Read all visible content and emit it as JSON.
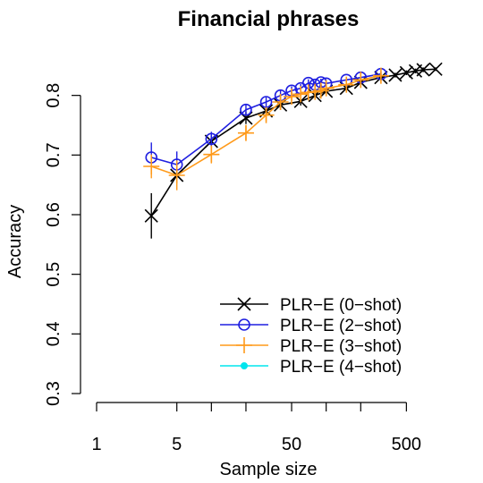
{
  "chart_data": {
    "type": "line",
    "title": "Financial phrases",
    "xlabel": "Sample size",
    "ylabel": "Accuracy",
    "x_scale": "log",
    "xlim": [
      1,
      1000
    ],
    "ylim": [
      0.3,
      0.87
    ],
    "x_ticks": [
      1,
      5,
      10,
      20,
      50,
      100,
      200,
      500
    ],
    "x_tick_labels": [
      "1",
      "5",
      "",
      "",
      "50",
      "",
      "",
      "500"
    ],
    "y_ticks": [
      0.3,
      0.4,
      0.5,
      0.6,
      0.7,
      0.8
    ],
    "y_tick_labels": [
      "0.3",
      "0.4",
      "0.5",
      "0.6",
      "0.7",
      "0.8"
    ],
    "grid": false,
    "legend_position": "bottom-right",
    "series": [
      {
        "name": "PLR−E (0−shot)",
        "color": "#000000",
        "marker": "x",
        "x": [
          3,
          5,
          10,
          20,
          30,
          40,
          60,
          80,
          100,
          150,
          200,
          300,
          400,
          500,
          600,
          700,
          900
        ],
        "y": [
          0.598,
          0.666,
          0.723,
          0.762,
          0.774,
          0.784,
          0.79,
          0.8,
          0.807,
          0.812,
          0.822,
          0.83,
          0.834,
          0.838,
          0.841,
          0.843,
          0.844
        ],
        "err": [
          0.038,
          0.01,
          0.01,
          0.01,
          0.008,
          0.008,
          0.007,
          0.006,
          0.006,
          0.006,
          0.005,
          0.005,
          0.004,
          0.004,
          0.004,
          0.004,
          0.003
        ]
      },
      {
        "name": "PLR−E (2−shot)",
        "color": "#1f1fe0",
        "marker": "circle",
        "x": [
          3,
          5,
          10,
          20,
          30,
          40,
          50,
          60,
          70,
          80,
          90,
          100,
          150,
          200,
          300
        ],
        "y": [
          0.696,
          0.684,
          0.727,
          0.776,
          0.789,
          0.8,
          0.808,
          0.812,
          0.821,
          0.818,
          0.822,
          0.82,
          0.826,
          0.83,
          0.836
        ],
        "err": [
          0.025,
          0.022,
          0.012,
          0.01,
          0.008,
          0.008,
          0.007,
          0.007,
          0.006,
          0.006,
          0.006,
          0.006,
          0.005,
          0.005,
          0.004
        ]
      },
      {
        "name": "PLR−E (3−shot)",
        "color": "#ff9a1a",
        "marker": "plus",
        "x": [
          3,
          5,
          10,
          20,
          30,
          40,
          50,
          60,
          70,
          80,
          90,
          100,
          150,
          200,
          300
        ],
        "y": [
          0.681,
          0.666,
          0.701,
          0.737,
          0.767,
          0.789,
          0.798,
          0.802,
          0.805,
          0.806,
          0.808,
          0.812,
          0.818,
          0.826,
          0.833
        ],
        "err": [
          0.02,
          0.025,
          0.015,
          0.012,
          0.01,
          0.008,
          0.007,
          0.007,
          0.006,
          0.006,
          0.006,
          0.005,
          0.005,
          0.005,
          0.004
        ]
      },
      {
        "name": "PLR−E (4−shot)",
        "color": "#00e5ee",
        "marker": "dot",
        "x": [],
        "y": [],
        "err": []
      }
    ]
  }
}
